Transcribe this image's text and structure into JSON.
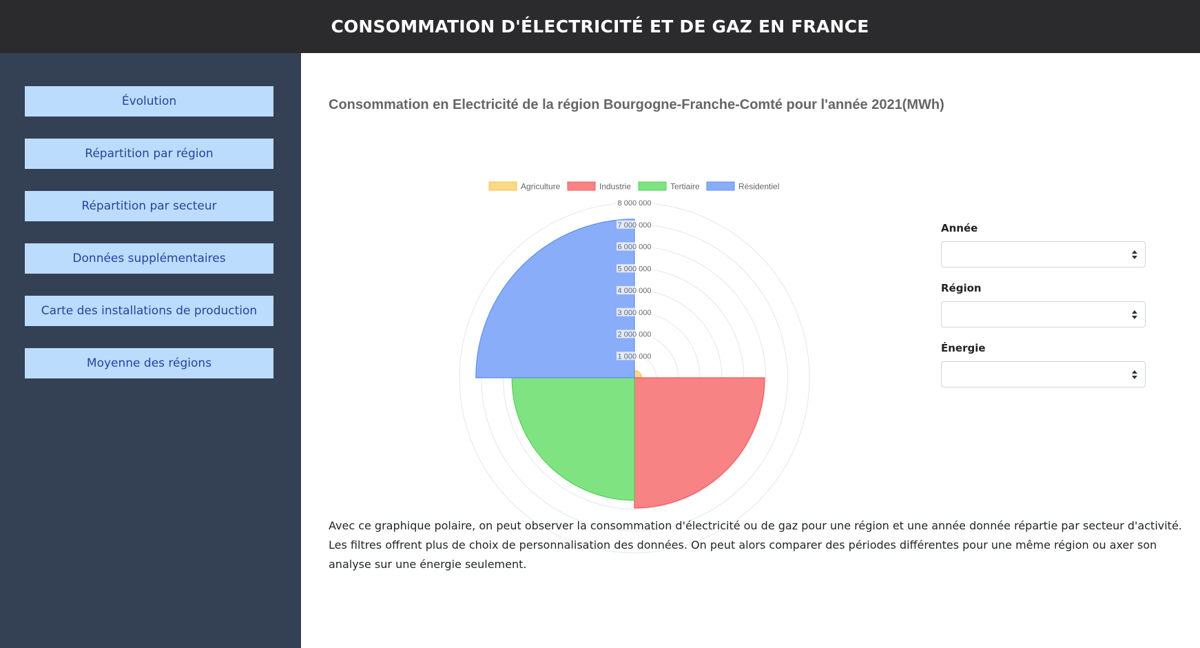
{
  "header": {
    "title": "CONSOMMATION D'ÉLECTRICITÉ ET DE GAZ EN FRANCE"
  },
  "sidebar": {
    "items": [
      {
        "label": "Évolution"
      },
      {
        "label": "Répartition par région"
      },
      {
        "label": "Répartition par secteur"
      },
      {
        "label": "Données supplémentaires"
      },
      {
        "label": "Carte des installations de production"
      },
      {
        "label": "Moyenne des régions"
      }
    ]
  },
  "filters": {
    "annee": {
      "label": "Année",
      "value": ""
    },
    "region": {
      "label": "Région",
      "value": ""
    },
    "energie": {
      "label": "Énergie",
      "value": ""
    }
  },
  "description": "Avec ce graphique polaire, on peut observer la consommation d'électricité ou de gaz pour une région et une année donnée répartie par secteur d'activité. Les filtres offrent plus de choix de personnalisation des données. On peut alors comparer des périodes différentes pour une même région ou axer son analyse sur une énergie seulement.",
  "colors": {
    "header_bg": "#2b2b2d",
    "sidebar_bg": "#344054",
    "nav_button_bg": "#bcdcfd",
    "nav_button_text": "#26439c"
  },
  "chart_data": {
    "type": "polarArea",
    "title": "Consommation en Electricité de la région Bourgogne-Franche-Comté pour l'année 2021(MWh)",
    "categories": [
      "Agriculture",
      "Industrie",
      "Tertiaire",
      "Résidentiel"
    ],
    "values": [
      330000,
      5950000,
      5600000,
      7250000
    ],
    "colors": [
      "#fad988",
      "#f78385",
      "#80e382",
      "#89adf8"
    ],
    "borderColors": [
      "#f6c244",
      "#f4545a",
      "#4dd14f",
      "#5b8ef5"
    ],
    "rMax": 8000000,
    "ticks": [
      1000000,
      2000000,
      3000000,
      4000000,
      5000000,
      6000000,
      7000000,
      8000000
    ],
    "tickLabels": [
      "1 000 000",
      "2 000 000",
      "3 000 000",
      "4 000 000",
      "5 000 000",
      "6 000 000",
      "7 000 000",
      "8 000 000"
    ],
    "legend": "top",
    "grid": true
  }
}
